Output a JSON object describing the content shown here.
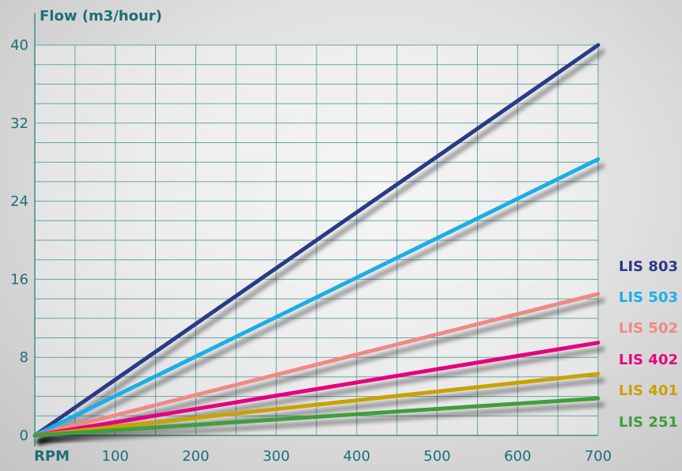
{
  "chart_data": {
    "type": "line",
    "ylabel": "Flow (m3/hour)",
    "xlabel": "RPM",
    "x": [
      0,
      700
    ],
    "xticks": [
      100,
      200,
      300,
      400,
      500,
      600,
      700
    ],
    "yticks": [
      0,
      8,
      16,
      24,
      32,
      40
    ],
    "xlim": [
      0,
      700
    ],
    "ylim": [
      0,
      40
    ],
    "grid": true,
    "legend_position": "right",
    "series": [
      {
        "name": "LIS 803",
        "values": [
          0,
          40
        ],
        "color": "#2b3b86"
      },
      {
        "name": "LIS 503",
        "values": [
          0,
          28.3
        ],
        "color": "#1eaee6"
      },
      {
        "name": "LIS 502",
        "values": [
          0,
          14.5
        ],
        "color": "#ee8a86"
      },
      {
        "name": "LIS 402",
        "values": [
          0,
          9.5
        ],
        "color": "#e5067e"
      },
      {
        "name": "LIS 401",
        "values": [
          0,
          6.3
        ],
        "color": "#c8a200"
      },
      {
        "name": "LIS 251",
        "values": [
          0,
          3.8
        ],
        "color": "#3f9e3d"
      }
    ],
    "grid_color": "#3f8e8c",
    "text_color": "#1c6f78"
  }
}
